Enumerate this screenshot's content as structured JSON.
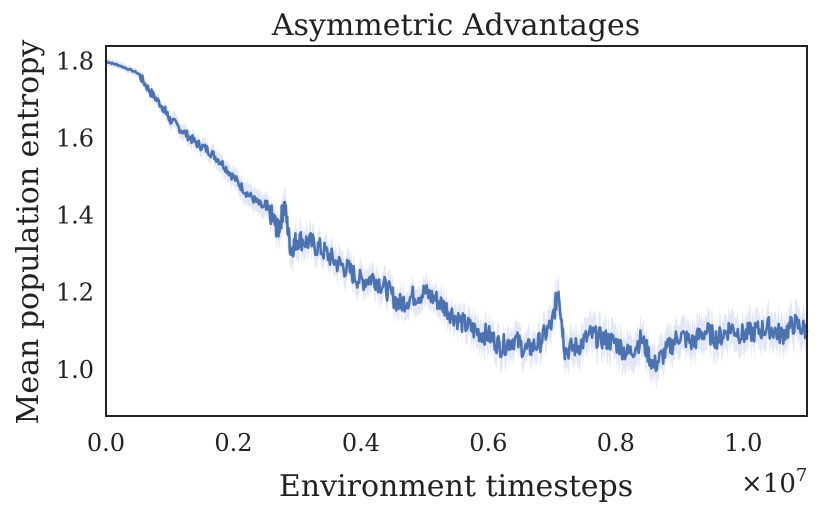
{
  "chart_data": {
    "type": "line",
    "title": "Asymmetric Advantages",
    "xlabel": "Environment timesteps",
    "ylabel": "Mean population entropy",
    "x_multiplier_label": "×10",
    "x_multiplier_exponent": "7",
    "xlim": [
      0.0,
      1.1
    ],
    "ylim": [
      0.88,
      1.84
    ],
    "x_ticks": [
      {
        "value": 0.0,
        "label": "0.0"
      },
      {
        "value": 0.2,
        "label": "0.2"
      },
      {
        "value": 0.4,
        "label": "0.4"
      },
      {
        "value": 0.6,
        "label": "0.6"
      },
      {
        "value": 0.8,
        "label": "0.8"
      },
      {
        "value": 1.0,
        "label": "1.0"
      }
    ],
    "y_ticks": [
      {
        "value": 1.0,
        "label": "1.0"
      },
      {
        "value": 1.2,
        "label": "1.2"
      },
      {
        "value": 1.4,
        "label": "1.4"
      },
      {
        "value": 1.6,
        "label": "1.6"
      },
      {
        "value": 1.8,
        "label": "1.8"
      }
    ],
    "grid": false,
    "legend": "none",
    "series": [
      {
        "color": "#4c72b0",
        "band_color": "#c9d4f0",
        "x": [
          0.0,
          0.02,
          0.05,
          0.07,
          0.09,
          0.1,
          0.12,
          0.14,
          0.16,
          0.18,
          0.2,
          0.22,
          0.24,
          0.26,
          0.27,
          0.28,
          0.29,
          0.3,
          0.32,
          0.34,
          0.36,
          0.38,
          0.4,
          0.42,
          0.44,
          0.46,
          0.48,
          0.5,
          0.52,
          0.54,
          0.56,
          0.58,
          0.6,
          0.62,
          0.64,
          0.66,
          0.68,
          0.7,
          0.71,
          0.72,
          0.74,
          0.76,
          0.78,
          0.8,
          0.82,
          0.84,
          0.86,
          0.88,
          0.9,
          0.92,
          0.94,
          0.96,
          0.98,
          1.0,
          1.02,
          1.04,
          1.06,
          1.08,
          1.1
        ],
        "y": [
          1.8,
          1.79,
          1.77,
          1.72,
          1.68,
          1.65,
          1.62,
          1.59,
          1.57,
          1.54,
          1.5,
          1.46,
          1.43,
          1.4,
          1.36,
          1.43,
          1.31,
          1.34,
          1.33,
          1.31,
          1.28,
          1.26,
          1.23,
          1.24,
          1.21,
          1.17,
          1.19,
          1.2,
          1.18,
          1.15,
          1.12,
          1.1,
          1.09,
          1.06,
          1.08,
          1.05,
          1.07,
          1.12,
          1.21,
          1.05,
          1.06,
          1.09,
          1.08,
          1.07,
          1.04,
          1.08,
          1.01,
          1.05,
          1.09,
          1.07,
          1.1,
          1.08,
          1.11,
          1.09,
          1.1,
          1.11,
          1.09,
          1.12,
          1.1
        ],
        "band": [
          0.01,
          0.01,
          0.01,
          0.015,
          0.015,
          0.02,
          0.02,
          0.02,
          0.02,
          0.025,
          0.025,
          0.03,
          0.03,
          0.03,
          0.04,
          0.05,
          0.04,
          0.04,
          0.035,
          0.035,
          0.035,
          0.035,
          0.035,
          0.035,
          0.035,
          0.035,
          0.035,
          0.035,
          0.035,
          0.035,
          0.035,
          0.04,
          0.04,
          0.04,
          0.04,
          0.04,
          0.04,
          0.045,
          0.05,
          0.045,
          0.045,
          0.045,
          0.045,
          0.045,
          0.045,
          0.045,
          0.045,
          0.045,
          0.045,
          0.045,
          0.045,
          0.045,
          0.045,
          0.045,
          0.045,
          0.045,
          0.045,
          0.045,
          0.045
        ]
      }
    ]
  }
}
